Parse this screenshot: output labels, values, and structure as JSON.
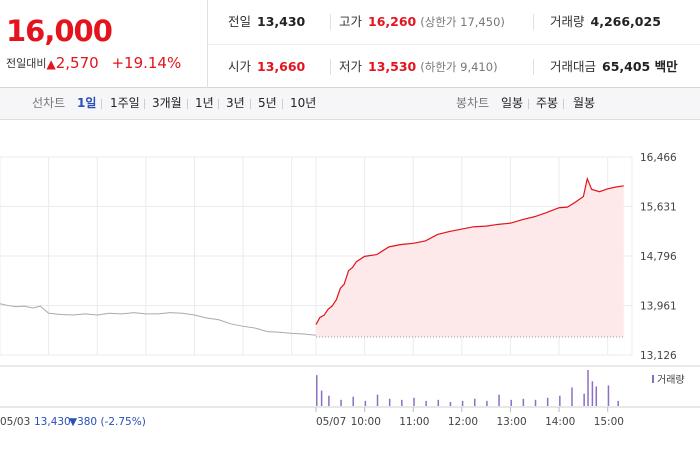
{
  "quote": {
    "price": "16,000",
    "change_label": "전일대비",
    "change_arrow": "▲",
    "change_value": "2,570",
    "change_pct": "+19.14%"
  },
  "stats": {
    "prev_close": {
      "label": "전일",
      "value": "13,430"
    },
    "high": {
      "label": "고가",
      "value": "16,260",
      "sub": "(상한가 17,450)"
    },
    "volume": {
      "label": "거래량",
      "value": "4,266,025"
    },
    "open": {
      "label": "시가",
      "value": "13,660"
    },
    "low": {
      "label": "저가",
      "value": "13,530",
      "sub": "(하한가 9,410)"
    },
    "amount": {
      "label": "거래대금",
      "value": "65,405 백만"
    }
  },
  "tabs": {
    "line_label": "선차트",
    "periods": [
      "1일",
      "1주일",
      "3개월",
      "1년",
      "3년",
      "5년",
      "10년"
    ],
    "active_period": "1일",
    "candle_label": "봉차트",
    "candles": [
      "일봉",
      "주봉",
      "월봉"
    ]
  },
  "colors": {
    "up": "#e3141d",
    "prev_day_line": "#aaaaaa",
    "fill": "#fde8ea",
    "volume": "#8b6fc2"
  },
  "chart_data": {
    "type": "line",
    "title": "",
    "ylim": [
      13126,
      16466
    ],
    "y_ticks": [
      "16,466",
      "15,631",
      "14,796",
      "13,961",
      "13,126"
    ],
    "x_ticks": [
      "05/07",
      "10:00",
      "11:00",
      "12:00",
      "13:00",
      "14:00",
      "15:00"
    ],
    "x_tick_hours": [
      9.0,
      10.0,
      11.0,
      12.0,
      13.0,
      14.0,
      15.0
    ],
    "prev_day_label": "05/03",
    "prev_day_close_text": "13,430",
    "prev_day_change_text": "▼380 (-2.75%)",
    "prev_close_ref": 13430,
    "volume_legend": "거래량",
    "grid": true,
    "series": [
      {
        "day": "05/03",
        "x_hours": [
          9.0,
          9.17,
          9.33,
          9.5,
          9.67,
          9.83,
          10.0,
          10.25,
          10.5,
          10.75,
          11.0,
          11.25,
          11.5,
          11.75,
          12.0,
          12.25,
          12.5,
          12.75,
          13.0,
          13.25,
          13.5,
          13.75,
          14.0,
          14.25,
          14.5,
          14.75,
          15.0,
          15.25,
          15.5
        ],
        "values": [
          13990,
          13960,
          13940,
          13950,
          13920,
          13950,
          13830,
          13810,
          13800,
          13820,
          13800,
          13830,
          13820,
          13840,
          13820,
          13820,
          13840,
          13830,
          13800,
          13750,
          13720,
          13650,
          13610,
          13580,
          13520,
          13510,
          13490,
          13480,
          13460
        ]
      },
      {
        "day": "05/07",
        "x_hours": [
          9.0,
          9.08,
          9.17,
          9.25,
          9.33,
          9.42,
          9.5,
          9.58,
          9.67,
          9.75,
          9.83,
          10.0,
          10.25,
          10.5,
          10.75,
          11.0,
          11.25,
          11.5,
          11.75,
          12.0,
          12.25,
          12.5,
          12.75,
          13.0,
          13.25,
          13.5,
          13.75,
          14.0,
          14.17,
          14.33,
          14.5,
          14.58,
          14.67,
          14.83,
          15.0,
          15.17,
          15.33
        ],
        "values": [
          13640,
          13760,
          13800,
          13900,
          13950,
          14060,
          14250,
          14320,
          14550,
          14600,
          14700,
          14790,
          14820,
          14950,
          14990,
          15010,
          15050,
          15160,
          15210,
          15250,
          15290,
          15300,
          15330,
          15350,
          15410,
          15460,
          15530,
          15610,
          15620,
          15700,
          15800,
          16100,
          15920,
          15880,
          15930,
          15960,
          15980
        ]
      }
    ],
    "volume": {
      "day": "05/07",
      "x_hours": [
        9.0,
        9.1,
        9.25,
        9.5,
        9.75,
        10.0,
        10.25,
        10.5,
        10.75,
        11.0,
        11.25,
        11.5,
        11.75,
        12.0,
        12.25,
        12.5,
        12.75,
        13.0,
        13.25,
        13.5,
        13.75,
        14.0,
        14.25,
        14.5,
        14.58,
        14.67,
        14.75,
        15.0,
        15.2
      ],
      "values": [
        60,
        30,
        20,
        12,
        18,
        10,
        22,
        14,
        12,
        16,
        10,
        12,
        8,
        10,
        14,
        10,
        22,
        12,
        14,
        12,
        16,
        20,
        36,
        24,
        70,
        48,
        38,
        40,
        10
      ]
    }
  }
}
